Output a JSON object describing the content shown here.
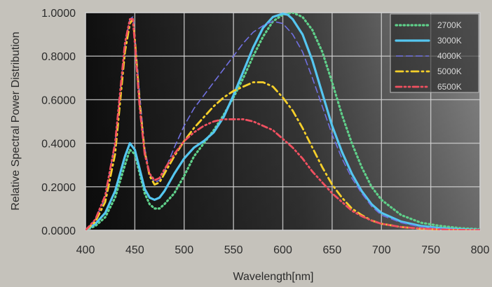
{
  "chart_data": {
    "type": "line",
    "title": "",
    "xlabel": "Wavelength[nm]",
    "ylabel": "Relative Spectral Power Distribution",
    "xlim": [
      400,
      800
    ],
    "ylim": [
      0,
      1
    ],
    "x_ticks": [
      "400",
      "450",
      "500",
      "550",
      "600",
      "650",
      "700",
      "750",
      "800"
    ],
    "y_ticks": [
      "0.0000",
      "0.2000",
      "0.4000",
      "0.6000",
      "0.8000",
      "1.0000"
    ],
    "grid": true,
    "legend_position": "top-right",
    "series": [
      {
        "name": "2700K",
        "color": "#5fd08a",
        "style": "dotted",
        "x": [
          400,
          410,
          420,
          430,
          440,
          445,
          450,
          455,
          460,
          465,
          470,
          475,
          480,
          490,
          500,
          510,
          520,
          530,
          540,
          550,
          560,
          570,
          580,
          590,
          600,
          610,
          620,
          630,
          640,
          650,
          660,
          670,
          680,
          690,
          700,
          720,
          740,
          760,
          780,
          800
        ],
        "y": [
          0.0,
          0.02,
          0.06,
          0.15,
          0.3,
          0.37,
          0.35,
          0.26,
          0.17,
          0.12,
          0.1,
          0.1,
          0.12,
          0.17,
          0.25,
          0.34,
          0.4,
          0.46,
          0.53,
          0.61,
          0.7,
          0.8,
          0.89,
          0.96,
          0.99,
          1.0,
          0.98,
          0.92,
          0.82,
          0.68,
          0.53,
          0.4,
          0.29,
          0.2,
          0.14,
          0.07,
          0.035,
          0.02,
          0.01,
          0.005
        ]
      },
      {
        "name": "3000K",
        "color": "#55c6f0",
        "style": "solid",
        "x": [
          400,
          410,
          420,
          430,
          440,
          445,
          450,
          455,
          460,
          465,
          470,
          475,
          480,
          490,
          500,
          510,
          520,
          530,
          540,
          550,
          560,
          570,
          580,
          590,
          600,
          605,
          610,
          620,
          630,
          640,
          650,
          660,
          670,
          680,
          690,
          700,
          720,
          740,
          760,
          780,
          800
        ],
        "y": [
          0.0,
          0.03,
          0.08,
          0.18,
          0.34,
          0.4,
          0.37,
          0.28,
          0.19,
          0.15,
          0.14,
          0.15,
          0.18,
          0.26,
          0.33,
          0.38,
          0.41,
          0.45,
          0.52,
          0.62,
          0.73,
          0.84,
          0.93,
          0.98,
          0.995,
          0.99,
          0.97,
          0.9,
          0.78,
          0.63,
          0.48,
          0.36,
          0.26,
          0.18,
          0.12,
          0.08,
          0.04,
          0.02,
          0.01,
          0.005,
          0.002
        ]
      },
      {
        "name": "4000K",
        "color": "#7070e0",
        "style": "dashed",
        "x": [
          400,
          410,
          420,
          430,
          440,
          445,
          448,
          450,
          455,
          460,
          465,
          470,
          475,
          480,
          490,
          500,
          510,
          520,
          530,
          540,
          550,
          560,
          570,
          580,
          590,
          600,
          610,
          620,
          630,
          640,
          650,
          660,
          670,
          680,
          690,
          700,
          720,
          740,
          760,
          780,
          800
        ],
        "y": [
          0.0,
          0.05,
          0.15,
          0.4,
          0.85,
          0.97,
          0.98,
          0.9,
          0.62,
          0.38,
          0.26,
          0.22,
          0.23,
          0.27,
          0.38,
          0.48,
          0.56,
          0.62,
          0.68,
          0.74,
          0.8,
          0.86,
          0.91,
          0.94,
          0.96,
          0.95,
          0.9,
          0.82,
          0.7,
          0.57,
          0.44,
          0.33,
          0.24,
          0.17,
          0.11,
          0.07,
          0.035,
          0.015,
          0.007,
          0.003,
          0.001
        ]
      },
      {
        "name": "5000K",
        "color": "#f5cf2a",
        "style": "dashdot",
        "x": [
          400,
          410,
          420,
          430,
          440,
          445,
          448,
          450,
          455,
          460,
          465,
          470,
          475,
          480,
          490,
          500,
          510,
          520,
          530,
          540,
          550,
          560,
          570,
          580,
          590,
          600,
          610,
          620,
          630,
          640,
          650,
          660,
          670,
          680,
          690,
          700,
          720,
          740,
          760,
          780,
          800
        ],
        "y": [
          0.0,
          0.04,
          0.13,
          0.35,
          0.82,
          0.95,
          0.97,
          0.88,
          0.58,
          0.36,
          0.25,
          0.21,
          0.22,
          0.26,
          0.34,
          0.41,
          0.47,
          0.52,
          0.57,
          0.61,
          0.64,
          0.66,
          0.68,
          0.68,
          0.66,
          0.61,
          0.55,
          0.47,
          0.38,
          0.29,
          0.21,
          0.15,
          0.1,
          0.07,
          0.045,
          0.03,
          0.015,
          0.007,
          0.003,
          0.001,
          0.0
        ]
      },
      {
        "name": "6500K",
        "color": "#f05060",
        "style": "dashdotdot",
        "x": [
          400,
          410,
          420,
          430,
          440,
          445,
          448,
          450,
          455,
          460,
          465,
          470,
          475,
          480,
          490,
          500,
          510,
          520,
          530,
          540,
          550,
          560,
          570,
          580,
          590,
          600,
          610,
          620,
          630,
          640,
          650,
          660,
          670,
          680,
          690,
          700,
          720,
          740,
          760,
          780,
          800
        ],
        "y": [
          0.0,
          0.05,
          0.16,
          0.4,
          0.86,
          0.97,
          0.97,
          0.86,
          0.56,
          0.35,
          0.26,
          0.23,
          0.24,
          0.28,
          0.35,
          0.41,
          0.45,
          0.48,
          0.5,
          0.51,
          0.51,
          0.51,
          0.5,
          0.48,
          0.46,
          0.42,
          0.38,
          0.33,
          0.27,
          0.22,
          0.17,
          0.13,
          0.09,
          0.065,
          0.045,
          0.03,
          0.015,
          0.008,
          0.004,
          0.002,
          0.001
        ]
      }
    ]
  }
}
